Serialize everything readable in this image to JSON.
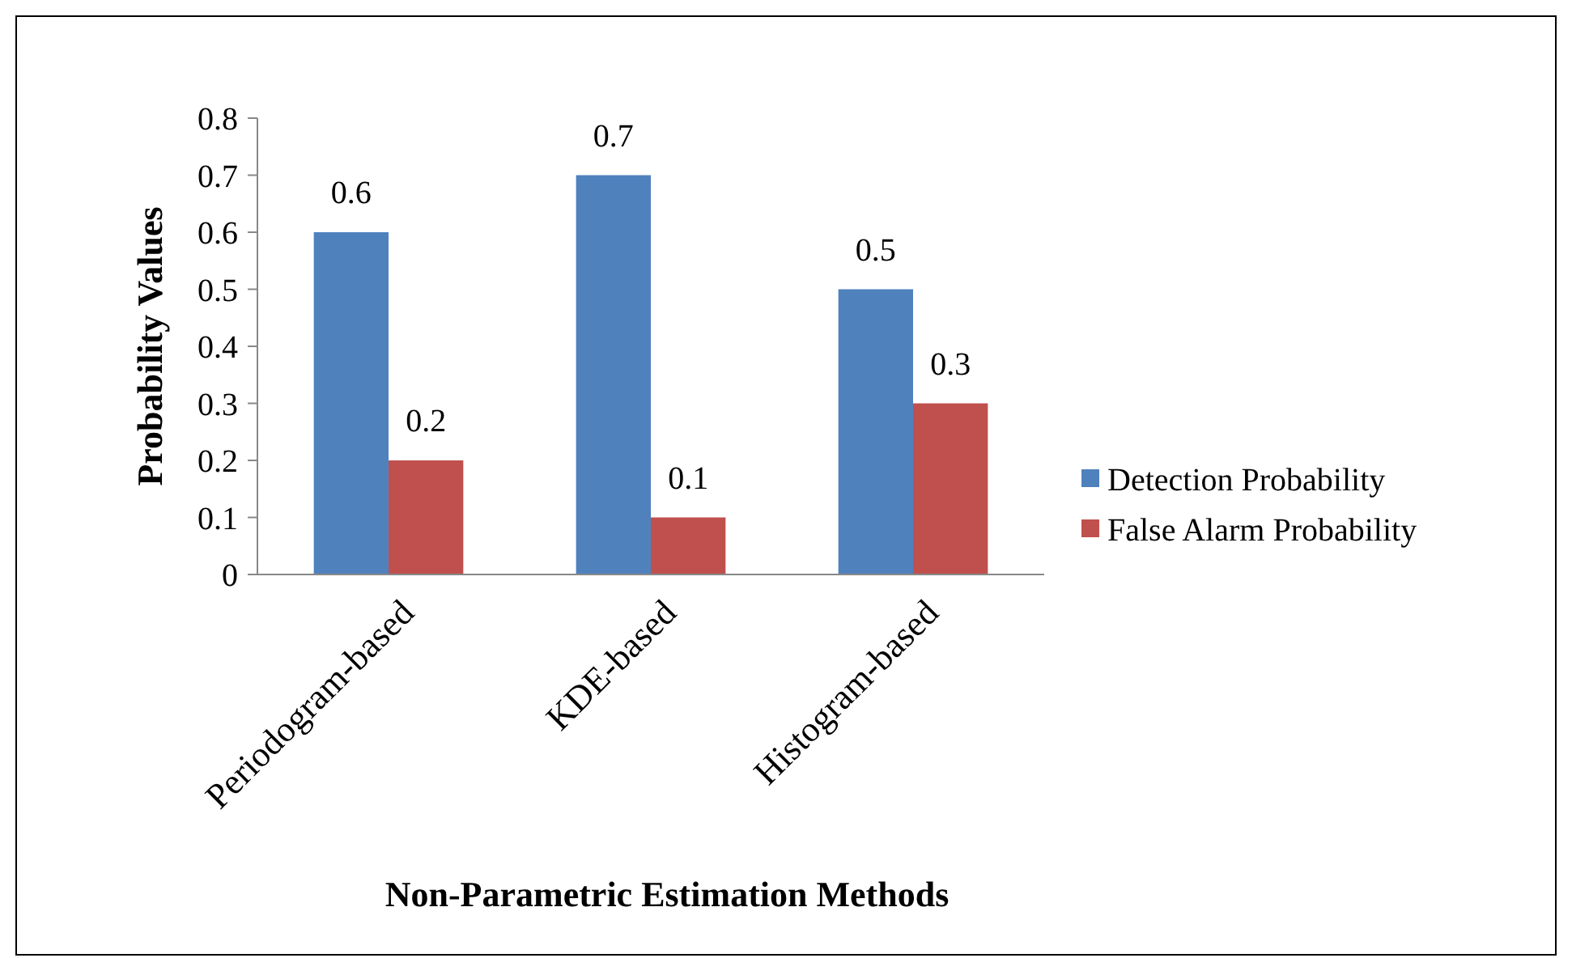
{
  "chart_data": {
    "type": "bar",
    "xlabel": "Non-Parametric Estimation Methods",
    "ylabel": "Probability Values",
    "categories": [
      "Periodogram-based",
      "KDE-based",
      "Histogram-based"
    ],
    "series": [
      {
        "name": "Detection Probability",
        "color": "#4f81bd",
        "values": [
          0.6,
          0.7,
          0.5
        ]
      },
      {
        "name": "False Alarm Probability",
        "color": "#c0504d",
        "values": [
          0.2,
          0.1,
          0.3
        ]
      }
    ],
    "ylim": [
      0,
      0.8
    ],
    "yticks": [
      0,
      0.1,
      0.2,
      0.3,
      0.4,
      0.5,
      0.6,
      0.7,
      0.8
    ],
    "grid": false,
    "legend": "right",
    "data_labels": true
  }
}
